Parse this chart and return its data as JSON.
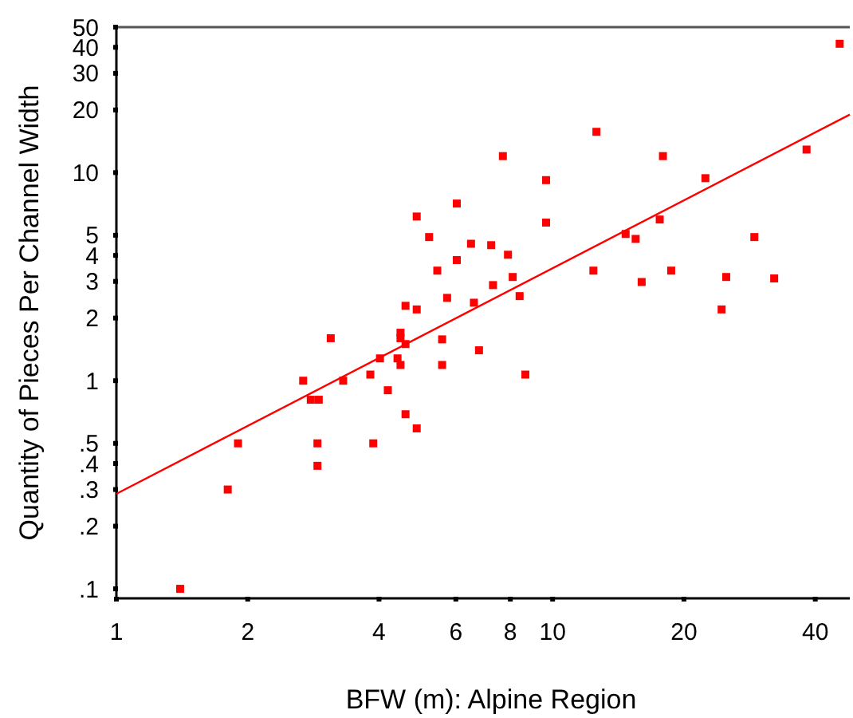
{
  "chart_data": {
    "type": "scatter",
    "xlabel": "BFW (m): Alpine Region",
    "ylabel": "Quantity of Pieces Per Channel Width",
    "log": "xy",
    "grid": false,
    "xlim": [
      1,
      48
    ],
    "ylim": [
      0.09,
      50
    ],
    "xticks": [
      1,
      2,
      4,
      6,
      8,
      10,
      20,
      40
    ],
    "yticks": [
      {
        "value": 0.1,
        "label": ".1"
      },
      {
        "value": 0.2,
        "label": ".2"
      },
      {
        "value": 0.3,
        "label": ".3"
      },
      {
        "value": 0.4,
        "label": ".4"
      },
      {
        "value": 0.5,
        "label": ".5"
      },
      1,
      2,
      3,
      4,
      5,
      10,
      20,
      30,
      40,
      50
    ],
    "series": [
      {
        "marker": "square",
        "color": "#ff0000",
        "x": [
          1.4,
          1.8,
          1.9,
          2.68,
          2.79,
          2.91,
          2.89,
          2.89,
          3.1,
          3.31,
          3.82,
          3.88,
          4.02,
          4.19,
          4.41,
          4.48,
          4.48,
          4.48,
          4.6,
          4.6,
          4.88,
          4.6,
          4.88,
          5.58,
          5.58,
          6.78,
          8.66,
          24.4,
          45.5,
          12.6,
          7.69,
          17.9,
          9.66,
          22.4,
          38.2,
          6.03,
          9.66,
          17.6,
          14.7,
          15.5,
          29,
          6.5,
          7.23,
          7.9,
          6.03,
          12.4,
          18.7,
          8.1,
          25,
          32.2,
          7.3,
          16,
          5.73,
          8.4,
          6.6,
          4.88,
          5.21,
          5.44
        ],
        "values": [
          0.1,
          0.3,
          0.5,
          1.0,
          0.81,
          0.81,
          0.5,
          0.39,
          1.6,
          1.0,
          1.07,
          0.5,
          1.28,
          0.9,
          1.28,
          1.19,
          1.7,
          1.6,
          1.5,
          0.69,
          0.59,
          2.29,
          2.2,
          1.58,
          1.19,
          1.4,
          1.07,
          2.2,
          41.6,
          15.7,
          12,
          12,
          9.2,
          9.4,
          12.9,
          7.1,
          5.75,
          5.95,
          5.07,
          4.8,
          4.9,
          4.55,
          4.48,
          4.03,
          3.8,
          3.38,
          3.38,
          3.15,
          3.15,
          3.1,
          2.88,
          2.98,
          2.5,
          2.55,
          2.37,
          6.15,
          4.9,
          3.38
        ]
      },
      {
        "type": "line",
        "color": "#ff0000",
        "x": [
          1,
          48
        ],
        "values": [
          0.286,
          19
        ]
      }
    ]
  }
}
